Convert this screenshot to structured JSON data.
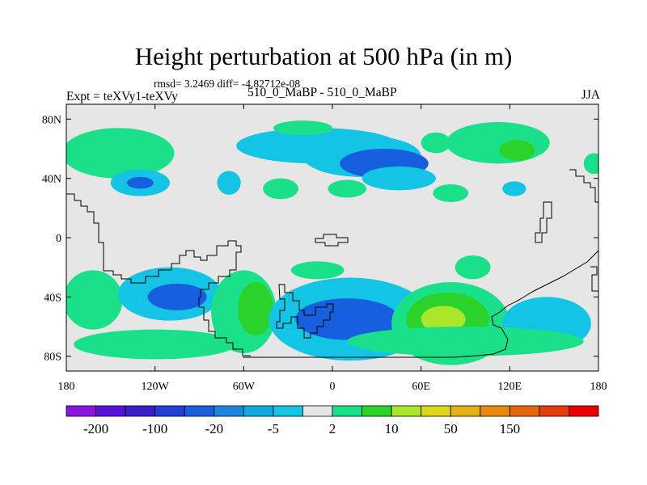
{
  "chart_data": {
    "type": "heatmap",
    "title": "Height perturbation at 500 hPa (in m)",
    "stats_text": "rmsd= 3.2469  diff= -4.82712e-08",
    "left_label": "Expt = teXVy1-teXVy",
    "center_label": "510_0_MaBP - 510_0_MaBP",
    "right_label": "JJA",
    "x_ticks": [
      "180",
      "120W",
      "60W",
      "0",
      "60E",
      "120E",
      "180"
    ],
    "y_ticks": [
      "80N",
      "40N",
      "0",
      "40S",
      "80S"
    ],
    "xlim": [
      -180,
      180
    ],
    "ylim": [
      -90,
      90
    ],
    "colorbar": {
      "colors": [
        "#8a14e0",
        "#5a10d8",
        "#3c1ec8",
        "#2040d8",
        "#1660e0",
        "#1a86e0",
        "#12a8e0",
        "#14c4e4",
        "#e6e6e6",
        "#1ae08a",
        "#2ad22a",
        "#aae62a",
        "#dcd71a",
        "#e6b014",
        "#e68a10",
        "#e6660c",
        "#e63c0c",
        "#e60000"
      ],
      "labels": [
        "-200",
        "-100",
        "-20",
        "-5",
        "2",
        "10",
        "50",
        "150"
      ],
      "label_after_box": [
        0,
        2,
        4,
        6,
        8,
        10,
        12,
        14
      ]
    },
    "anomaly_regions": [
      {
        "lon": -155,
        "lat": 57,
        "rlon": 22,
        "rlat": 11,
        "level": 10
      },
      {
        "lon": -145,
        "lat": 57,
        "rlon": 38,
        "rlat": 17,
        "level": 2
      },
      {
        "lon": -130,
        "lat": 37,
        "rlon": 20,
        "rlat": 9,
        "level": -5
      },
      {
        "lon": -130,
        "lat": 37,
        "rlon": 9,
        "rlat": 4,
        "level": -20
      },
      {
        "lon": -70,
        "lat": 37,
        "rlon": 8,
        "rlat": 8,
        "level": -5
      },
      {
        "lon": -35,
        "lat": 33,
        "rlon": 12,
        "rlat": 7,
        "level": 2
      },
      {
        "lon": -10,
        "lat": 62,
        "rlon": 55,
        "rlat": 12,
        "level": -5
      },
      {
        "lon": 20,
        "lat": 55,
        "rlon": 40,
        "rlat": 14,
        "level": -5
      },
      {
        "lon": 35,
        "lat": 50,
        "rlon": 30,
        "rlat": 10,
        "level": -20
      },
      {
        "lon": 45,
        "lat": 40,
        "rlon": 25,
        "rlat": 8,
        "level": -5
      },
      {
        "lon": 10,
        "lat": 33,
        "rlon": 13,
        "rlat": 6,
        "level": 2
      },
      {
        "lon": -20,
        "lat": 74,
        "rlon": 20,
        "rlat": 5,
        "level": 2
      },
      {
        "lon": 70,
        "lat": 64,
        "rlon": 10,
        "rlat": 7,
        "level": 2
      },
      {
        "lon": 112,
        "lat": 64,
        "rlon": 35,
        "rlat": 14,
        "level": 2
      },
      {
        "lon": 125,
        "lat": 59,
        "rlon": 12,
        "rlat": 7,
        "level": 10
      },
      {
        "lon": 80,
        "lat": 30,
        "rlon": 12,
        "rlat": 6,
        "level": 2
      },
      {
        "lon": 123,
        "lat": 33,
        "rlon": 8,
        "rlat": 5,
        "level": -5
      },
      {
        "lon": 177,
        "lat": 50,
        "rlon": 7,
        "rlat": 7,
        "level": 2
      },
      {
        "lon": -162,
        "lat": -42,
        "rlon": 20,
        "rlat": 20,
        "level": 2
      },
      {
        "lon": -110,
        "lat": -38,
        "rlon": 35,
        "rlat": 18,
        "level": -5
      },
      {
        "lon": -105,
        "lat": -40,
        "rlon": 20,
        "rlat": 9,
        "level": -20
      },
      {
        "lon": -60,
        "lat": -50,
        "rlon": 22,
        "rlat": 28,
        "level": 2
      },
      {
        "lon": -52,
        "lat": -48,
        "rlon": 12,
        "rlat": 18,
        "level": 10
      },
      {
        "lon": 12,
        "lat": -55,
        "rlon": 55,
        "rlat": 28,
        "level": -5
      },
      {
        "lon": 10,
        "lat": -55,
        "rlon": 35,
        "rlat": 14,
        "level": -20
      },
      {
        "lon": 80,
        "lat": -58,
        "rlon": 40,
        "rlat": 28,
        "level": 2
      },
      {
        "lon": 78,
        "lat": -55,
        "rlon": 28,
        "rlat": 18,
        "level": 10
      },
      {
        "lon": 75,
        "lat": -55,
        "rlon": 15,
        "rlat": 9,
        "level": 50
      },
      {
        "lon": 145,
        "lat": -58,
        "rlon": 30,
        "rlat": 18,
        "level": -5
      },
      {
        "lon": -10,
        "lat": -22,
        "rlon": 18,
        "rlat": 6,
        "level": 2
      },
      {
        "lon": 95,
        "lat": -20,
        "rlon": 12,
        "rlat": 8,
        "level": 2
      },
      {
        "lon": 90,
        "lat": -70,
        "rlon": 80,
        "rlat": 10,
        "level": 2
      },
      {
        "lon": -120,
        "lat": -72,
        "rlon": 55,
        "rlat": 10,
        "level": 2
      }
    ]
  }
}
